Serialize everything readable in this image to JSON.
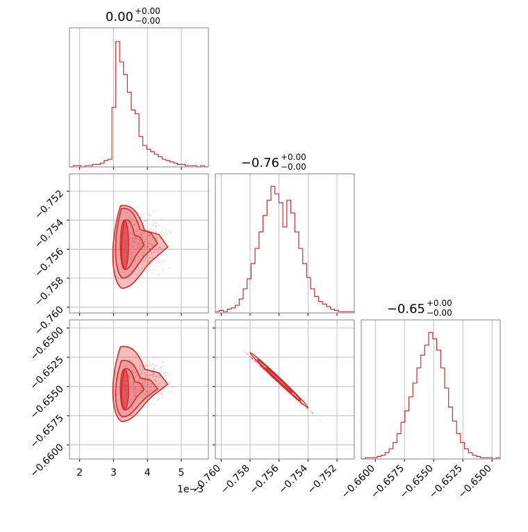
{
  "chart_data": {
    "type": "corner",
    "series_color": "#d62728",
    "grid": true,
    "parameters": [
      {
        "title": "0.00",
        "title_sup": "+0.00",
        "title_sub": "−0.00",
        "range": [
          1.7,
          5.8
        ],
        "ticks": [
          2,
          3,
          4,
          5
        ],
        "tick_labels": [
          "2",
          "3",
          "4",
          "5"
        ],
        "offset_label": "1e−3",
        "hist": [
          0,
          0.01,
          0.01,
          0,
          0.01,
          0.01,
          0.02,
          0.02,
          0.03,
          0.05,
          0.06,
          0.47,
          0.99,
          0.83,
          0.73,
          0.59,
          0.45,
          0.42,
          0.24,
          0.17,
          0.14,
          0.12,
          0.1,
          0.08,
          0.06,
          0.05,
          0.04,
          0.03,
          0.02,
          0.02,
          0.01,
          0.01,
          0.01,
          0,
          0.01,
          0
        ]
      },
      {
        "title": "−0.76",
        "title_sup": "+0.00",
        "title_sub": "−0.00",
        "range": [
          -0.7604,
          -0.7508
        ],
        "ticks": [
          -0.752,
          -0.754,
          -0.756,
          -0.758,
          -0.76
        ],
        "tick_labels": [
          "−0.752",
          "−0.754",
          "−0.756",
          "−0.758",
          "−0.760"
        ],
        "hist": [
          0.01,
          0.02,
          0.01,
          0.03,
          0.04,
          0.06,
          0.11,
          0.19,
          0.27,
          0.39,
          0.51,
          0.64,
          0.77,
          0.89,
          1.0,
          0.94,
          0.87,
          0.68,
          0.89,
          0.79,
          0.64,
          0.51,
          0.39,
          0.28,
          0.19,
          0.13,
          0.09,
          0.07,
          0.05,
          0.03,
          0.02,
          0.01,
          0.01,
          0.01,
          0.01
        ]
      },
      {
        "title": "−0.65",
        "title_sup": "+0.00",
        "title_sub": "−0.00",
        "range": [
          -0.6612,
          -0.6493
        ],
        "ticks": [
          -0.65,
          -0.6525,
          -0.655,
          -0.6575,
          -0.66
        ],
        "tick_labels": [
          "−0.6500",
          "−0.6525",
          "−0.6550",
          "−0.6575",
          "−0.6600"
        ],
        "hist": [
          0,
          0.01,
          0.01,
          0.01,
          0.02,
          0.03,
          0.05,
          0.08,
          0.13,
          0.2,
          0.29,
          0.38,
          0.49,
          0.6,
          0.72,
          0.82,
          0.9,
          1.0,
          0.95,
          0.86,
          0.72,
          0.56,
          0.41,
          0.3,
          0.2,
          0.13,
          0.08,
          0.05,
          0.03,
          0.02,
          0.01,
          0.01,
          0.01,
          0,
          0.01
        ]
      }
    ],
    "joint_2d": [
      {
        "x_param": 0,
        "y_param": 1,
        "scatter_region": {
          "x": [
            2.2,
            5.6
          ],
          "y": [
            -0.7595,
            -0.7515
          ]
        },
        "contour_levels": [
          {
            "x": [
              3.2,
              3.9
            ],
            "y": [
              -0.7574,
              -0.754
            ]
          },
          {
            "x": [
              3.0,
              4.3
            ],
            "y": [
              -0.758,
              -0.7532
            ]
          },
          {
            "x": [
              2.9,
              4.6
            ],
            "y": [
              -0.7587,
              -0.753
            ]
          }
        ]
      },
      {
        "x_param": 0,
        "y_param": 2,
        "scatter_region": {
          "x": [
            2.2,
            5.6
          ],
          "y": [
            -0.659,
            -0.65
          ]
        },
        "contour_levels": [
          {
            "x": [
              3.2,
              3.9
            ],
            "y": [
              -0.657,
              -0.6535
            ]
          },
          {
            "x": [
              3.0,
              4.3
            ],
            "y": [
              -0.6576,
              -0.6528
            ]
          },
          {
            "x": [
              2.9,
              4.6
            ],
            "y": [
              -0.658,
              -0.6516
            ]
          }
        ]
      },
      {
        "x_param": 1,
        "y_param": 2,
        "correlation": "strong-negative",
        "line": {
          "x": [
            -0.76,
            -0.7518
          ],
          "y": [
            -0.6502,
            -0.6594
          ]
        },
        "contour_span": {
          "x": [
            -0.758,
            -0.754
          ],
          "y": [
            -0.6521,
            -0.6568
          ]
        }
      }
    ]
  }
}
